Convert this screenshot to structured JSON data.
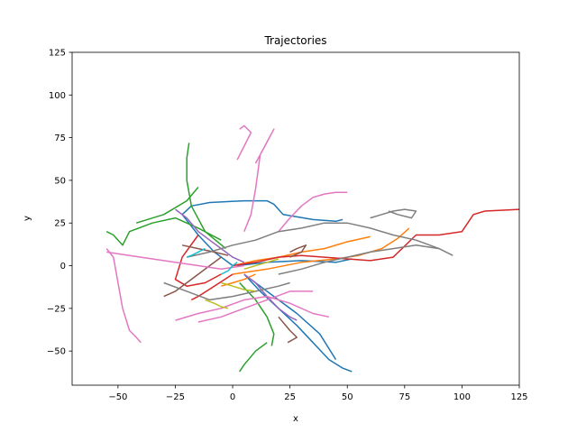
{
  "chart_data": {
    "type": "line",
    "title": "Trajectories",
    "xlabel": "x",
    "ylabel": "y",
    "xlim": [
      -70,
      125
    ],
    "ylim": [
      -70,
      125
    ],
    "xticks": [
      "−50",
      "−25",
      "0",
      "25",
      "50",
      "75",
      "100",
      "125"
    ],
    "xtick_values": [
      -50,
      -25,
      0,
      25,
      50,
      75,
      100,
      125
    ],
    "yticks": [
      "−50",
      "−25",
      "0",
      "25",
      "50",
      "75",
      "100",
      "125"
    ],
    "ytick_values": [
      -50,
      -25,
      0,
      25,
      50,
      75,
      100,
      125
    ],
    "grid": false,
    "legend": false,
    "series": [
      {
        "color": "#1f77b4",
        "x": [
          0,
          -8,
          -15,
          -22,
          -18,
          -10,
          5,
          15,
          18,
          22,
          35,
          45,
          48
        ],
        "y": [
          0,
          8,
          18,
          30,
          35,
          37,
          38,
          38,
          36,
          30,
          27,
          26,
          27
        ]
      },
      {
        "color": "#1f77b4",
        "x": [
          5,
          12,
          20,
          28,
          35,
          42,
          48,
          52
        ],
        "y": [
          -5,
          -15,
          -25,
          -35,
          -45,
          -55,
          -60,
          -62
        ]
      },
      {
        "color": "#1f77b4",
        "x": [
          8,
          18,
          28,
          38,
          45
        ],
        "y": [
          -8,
          -18,
          -28,
          -40,
          -55
        ]
      },
      {
        "color": "#1f77b4",
        "x": [
          2,
          15,
          30,
          45,
          52
        ],
        "y": [
          0,
          2,
          3,
          2,
          4
        ]
      },
      {
        "color": "#ff7f0e",
        "x": [
          0,
          10,
          20,
          30,
          40,
          50,
          60
        ],
        "y": [
          0,
          3,
          5,
          8,
          10,
          14,
          17
        ]
      },
      {
        "color": "#ff7f0e",
        "x": [
          0,
          15,
          30,
          45,
          55,
          65,
          72,
          77
        ],
        "y": [
          -5,
          -2,
          2,
          4,
          6,
          10,
          16,
          22
        ]
      },
      {
        "color": "#ff7f0e",
        "x": [
          10,
          5,
          0,
          -5
        ],
        "y": [
          -5,
          -8,
          -10,
          -12
        ]
      },
      {
        "color": "#2ca02c",
        "x": [
          -3,
          -12,
          -18,
          -20,
          -20,
          -19
        ],
        "y": [
          10,
          20,
          35,
          50,
          63,
          72
        ]
      },
      {
        "color": "#2ca02c",
        "x": [
          -5,
          -15,
          -25,
          -35,
          -45,
          -48,
          -52,
          -55
        ],
        "y": [
          15,
          22,
          28,
          25,
          20,
          12,
          18,
          20
        ]
      },
      {
        "color": "#2ca02c",
        "x": [
          -42,
          -30,
          -20,
          -15
        ],
        "y": [
          25,
          30,
          38,
          46
        ]
      },
      {
        "color": "#2ca02c",
        "x": [
          3,
          10,
          15,
          18,
          17
        ],
        "y": [
          -10,
          -20,
          -30,
          -40,
          -47
        ]
      },
      {
        "color": "#2ca02c",
        "x": [
          15,
          10,
          5,
          3
        ],
        "y": [
          -45,
          -50,
          -58,
          -62
        ]
      },
      {
        "color": "#d62728",
        "x": [
          0,
          10,
          20,
          30,
          40,
          50,
          60,
          70,
          80,
          90,
          100,
          105,
          110,
          125
        ],
        "y": [
          0,
          2,
          5,
          6,
          5,
          4,
          3,
          5,
          18,
          18,
          20,
          30,
          32,
          33
        ]
      },
      {
        "color": "#d62728",
        "x": [
          -5,
          -12,
          -20,
          -25,
          -22,
          -15
        ],
        "y": [
          -5,
          -10,
          -12,
          -8,
          5,
          18
        ]
      },
      {
        "color": "#d62728",
        "x": [
          0,
          -8,
          -15,
          -18
        ],
        "y": [
          -5,
          -12,
          -18,
          -20
        ]
      },
      {
        "color": "#9467bd",
        "x": [
          -25,
          -20,
          -15,
          -10,
          -5,
          0,
          5
        ],
        "y": [
          33,
          28,
          20,
          15,
          10,
          5,
          2
        ]
      },
      {
        "color": "#9467bd",
        "x": [
          5,
          10,
          15,
          20,
          25,
          28
        ],
        "y": [
          -5,
          -10,
          -18,
          -25,
          -30,
          -32
        ]
      },
      {
        "color": "#8c564b",
        "x": [
          -30,
          -25,
          -20,
          -15,
          -10,
          -5
        ],
        "y": [
          -18,
          -15,
          -10,
          -5,
          0,
          5
        ]
      },
      {
        "color": "#8c564b",
        "x": [
          -22,
          -15,
          -8,
          -2
        ],
        "y": [
          12,
          10,
          8,
          6
        ]
      },
      {
        "color": "#8c564b",
        "x": [
          25,
          30,
          32,
          28,
          25
        ],
        "y": [
          5,
          8,
          12,
          10,
          8
        ]
      },
      {
        "color": "#8c564b",
        "x": [
          20,
          25,
          28,
          24
        ],
        "y": [
          -30,
          -38,
          -42,
          -45
        ]
      },
      {
        "color": "#e377c2",
        "x": [
          -55,
          -45,
          -35,
          -25,
          -15,
          -5,
          5
        ],
        "y": [
          8,
          6,
          4,
          2,
          0,
          -2,
          0
        ]
      },
      {
        "color": "#e377c2",
        "x": [
          -55,
          -52,
          -50,
          -48,
          -45,
          -42,
          -40
        ],
        "y": [
          10,
          5,
          -10,
          -25,
          -38,
          -42,
          -45
        ]
      },
      {
        "color": "#e377c2",
        "x": [
          10,
          14,
          18,
          16,
          12,
          10,
          8,
          5
        ],
        "y": [
          60,
          70,
          80,
          75,
          65,
          45,
          30,
          20
        ]
      },
      {
        "color": "#e377c2",
        "x": [
          2,
          5,
          8,
          5,
          3
        ],
        "y": [
          62,
          70,
          78,
          82,
          80
        ]
      },
      {
        "color": "#e377c2",
        "x": [
          20,
          25,
          30,
          35,
          40,
          45,
          50
        ],
        "y": [
          20,
          28,
          35,
          40,
          42,
          43,
          43
        ]
      },
      {
        "color": "#e377c2",
        "x": [
          -25,
          -15,
          -5,
          5,
          15,
          25,
          35,
          42
        ],
        "y": [
          -32,
          -28,
          -25,
          -20,
          -18,
          -22,
          -28,
          -30
        ]
      },
      {
        "color": "#e377c2",
        "x": [
          -15,
          -5,
          5,
          15,
          25,
          35
        ],
        "y": [
          -33,
          -30,
          -25,
          -20,
          -15,
          -15
        ]
      },
      {
        "color": "#7f7f7f",
        "x": [
          -20,
          -10,
          0,
          10,
          20,
          30,
          40,
          50,
          60,
          70,
          80,
          90,
          96
        ],
        "y": [
          5,
          8,
          12,
          15,
          20,
          22,
          25,
          25,
          22,
          18,
          15,
          10,
          6
        ]
      },
      {
        "color": "#7f7f7f",
        "x": [
          60,
          65,
          70,
          75,
          80,
          78,
          72,
          68
        ],
        "y": [
          28,
          30,
          32,
          33,
          32,
          28,
          30,
          32
        ]
      },
      {
        "color": "#7f7f7f",
        "x": [
          -30,
          -20,
          -10,
          0,
          10,
          20,
          25
        ],
        "y": [
          -10,
          -15,
          -20,
          -18,
          -15,
          -12,
          -10
        ]
      },
      {
        "color": "#7f7f7f",
        "x": [
          20,
          30,
          40,
          50,
          60,
          70,
          80,
          90
        ],
        "y": [
          -5,
          -2,
          2,
          5,
          8,
          10,
          12,
          10
        ]
      },
      {
        "color": "#bcbd22",
        "x": [
          -12,
          -8,
          -5,
          -2
        ],
        "y": [
          -20,
          -22,
          -24,
          -25
        ]
      },
      {
        "color": "#bcbd22",
        "x": [
          -5,
          0,
          5,
          10
        ],
        "y": [
          -10,
          -12,
          -14,
          -15
        ]
      },
      {
        "color": "#bcbd22",
        "x": [
          5,
          10,
          15,
          20
        ],
        "y": [
          -2,
          0,
          2,
          4
        ]
      },
      {
        "color": "#17becf",
        "x": [
          -20,
          -18,
          -15,
          -12
        ],
        "y": [
          5,
          6,
          8,
          10
        ]
      },
      {
        "color": "#17becf",
        "x": [
          -5,
          -2,
          0,
          2
        ],
        "y": [
          -5,
          -3,
          0,
          2
        ]
      }
    ]
  }
}
